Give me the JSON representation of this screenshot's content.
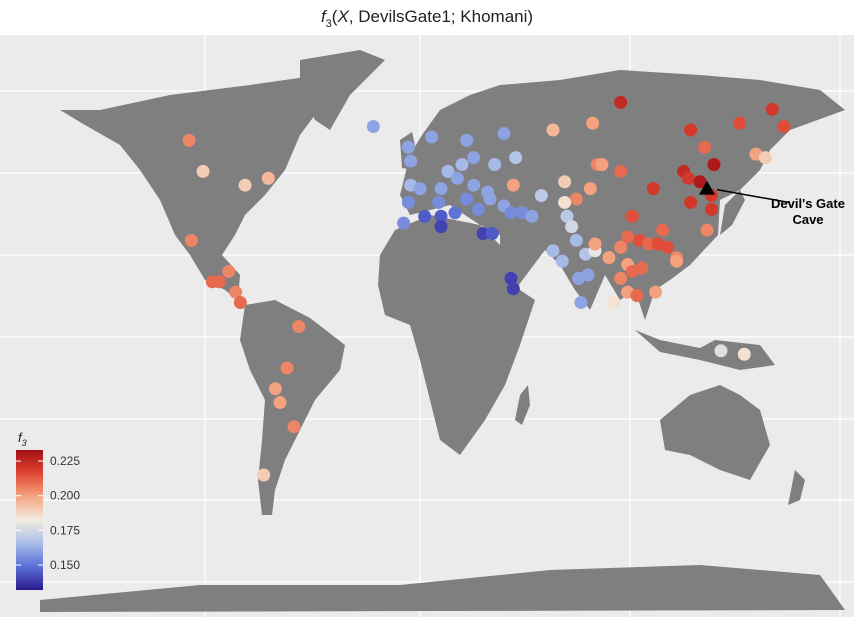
{
  "chart_data": {
    "type": "map",
    "title": [
      "f",
      "3",
      "(",
      "X",
      ", DevilsGate1; Khomani)"
    ],
    "legend_title": [
      "f",
      "3"
    ],
    "colorscale": [
      "#2a1a8c",
      "#5a6fd6",
      "#a9bde8",
      "#f3ece0",
      "#f4a582",
      "#e04632",
      "#a50f15"
    ],
    "clim": [
      0.132,
      0.233
    ],
    "legend_ticks": [
      {
        "value": 0.15,
        "label": "0.150"
      },
      0.175,
      {
        "value": 0.2,
        "label": "0.200"
      },
      0.225
    ],
    "cave": {
      "lon": 123,
      "lat": 43,
      "label": [
        "Devil's Gate",
        "Cave"
      ]
    },
    "points": [
      {
        "lon": -99,
        "lat": 57,
        "value": 0.205
      },
      {
        "lon": -93,
        "lat": 48,
        "value": 0.19
      },
      {
        "lon": -75,
        "lat": 44,
        "value": 0.19
      },
      {
        "lon": -65,
        "lat": 46,
        "value": 0.195
      },
      {
        "lon": -98,
        "lat": 28,
        "value": 0.205
      },
      {
        "lon": -89,
        "lat": 16,
        "value": 0.21
      },
      {
        "lon": -86,
        "lat": 16,
        "value": 0.21
      },
      {
        "lon": -82,
        "lat": 19,
        "value": 0.205
      },
      {
        "lon": -79,
        "lat": 13,
        "value": 0.205
      },
      {
        "lon": -77,
        "lat": 10,
        "value": 0.21
      },
      {
        "lon": -52,
        "lat": 3,
        "value": 0.205
      },
      {
        "lon": -57,
        "lat": -9,
        "value": 0.205
      },
      {
        "lon": -62,
        "lat": -15,
        "value": 0.2
      },
      {
        "lon": -60,
        "lat": -19,
        "value": 0.2
      },
      {
        "lon": -54,
        "lat": -26,
        "value": 0.205
      },
      {
        "lon": -67,
        "lat": -40,
        "value": 0.19
      },
      {
        "lon": -20,
        "lat": 61,
        "value": 0.16
      },
      {
        "lon": -5,
        "lat": 55,
        "value": 0.16
      },
      {
        "lon": -4,
        "lat": 51,
        "value": 0.16
      },
      {
        "lon": 5,
        "lat": 58,
        "value": 0.16
      },
      {
        "lon": -4,
        "lat": 44,
        "value": 0.165
      },
      {
        "lon": 0,
        "lat": 43,
        "value": 0.16
      },
      {
        "lon": 9,
        "lat": 43,
        "value": 0.16
      },
      {
        "lon": 12,
        "lat": 48,
        "value": 0.165
      },
      {
        "lon": 18,
        "lat": 50,
        "value": 0.165
      },
      {
        "lon": 20,
        "lat": 57,
        "value": 0.16
      },
      {
        "lon": 23,
        "lat": 52,
        "value": 0.16
      },
      {
        "lon": 16,
        "lat": 46,
        "value": 0.16
      },
      {
        "lon": 23,
        "lat": 44,
        "value": 0.16
      },
      {
        "lon": 29,
        "lat": 42,
        "value": 0.16
      },
      {
        "lon": 32,
        "lat": 50,
        "value": 0.165
      },
      {
        "lon": 36,
        "lat": 59,
        "value": 0.16
      },
      {
        "lon": 41,
        "lat": 52,
        "value": 0.168
      },
      {
        "lon": -5,
        "lat": 39,
        "value": 0.155
      },
      {
        "lon": -7,
        "lat": 33,
        "value": 0.155
      },
      {
        "lon": 2,
        "lat": 35,
        "value": 0.145
      },
      {
        "lon": 9,
        "lat": 35,
        "value": 0.145
      },
      {
        "lon": 9,
        "lat": 32,
        "value": 0.14
      },
      {
        "lon": 15,
        "lat": 36,
        "value": 0.15
      },
      {
        "lon": 8,
        "lat": 39,
        "value": 0.155
      },
      {
        "lon": 20,
        "lat": 40,
        "value": 0.155
      },
      {
        "lon": 25,
        "lat": 37,
        "value": 0.155
      },
      {
        "lon": 30,
        "lat": 40,
        "value": 0.16
      },
      {
        "lon": 36,
        "lat": 38,
        "value": 0.16
      },
      {
        "lon": 40,
        "lat": 44,
        "value": 0.2
      },
      {
        "lon": 27,
        "lat": 30,
        "value": 0.14
      },
      {
        "lon": 31,
        "lat": 30,
        "value": 0.145
      },
      {
        "lon": 39,
        "lat": 36,
        "value": 0.155
      },
      {
        "lon": 44,
        "lat": 36,
        "value": 0.155
      },
      {
        "lon": 39,
        "lat": 17,
        "value": 0.14
      },
      {
        "lon": 40,
        "lat": 14,
        "value": 0.14
      },
      {
        "lon": 48,
        "lat": 35,
        "value": 0.16
      },
      {
        "lon": 52,
        "lat": 41,
        "value": 0.17
      },
      {
        "lon": 57,
        "lat": 25,
        "value": 0.165
      },
      {
        "lon": 63,
        "lat": 35,
        "value": 0.17
      },
      {
        "lon": 65,
        "lat": 32,
        "value": 0.175
      },
      {
        "lon": 67,
        "lat": 28,
        "value": 0.165
      },
      {
        "lon": 61,
        "lat": 22,
        "value": 0.165
      },
      {
        "lon": 71,
        "lat": 24,
        "value": 0.168
      },
      {
        "lon": 75,
        "lat": 25,
        "value": 0.18
      },
      {
        "lon": 75,
        "lat": 27,
        "value": 0.2
      },
      {
        "lon": 68,
        "lat": 17,
        "value": 0.16
      },
      {
        "lon": 69,
        "lat": 10,
        "value": 0.16
      },
      {
        "lon": 72,
        "lat": 18,
        "value": 0.16
      },
      {
        "lon": 67,
        "lat": 40,
        "value": 0.205
      },
      {
        "lon": 73,
        "lat": 43,
        "value": 0.2
      },
      {
        "lon": 57,
        "lat": 60,
        "value": 0.195
      },
      {
        "lon": 62,
        "lat": 39,
        "value": 0.185
      },
      {
        "lon": 62,
        "lat": 45,
        "value": 0.19
      },
      {
        "lon": 76,
        "lat": 50,
        "value": 0.205
      },
      {
        "lon": 78,
        "lat": 50,
        "value": 0.2
      },
      {
        "lon": 74,
        "lat": 62,
        "value": 0.2
      },
      {
        "lon": 86,
        "lat": 68,
        "value": 0.225
      },
      {
        "lon": 86,
        "lat": 48,
        "value": 0.21
      },
      {
        "lon": 100,
        "lat": 43,
        "value": 0.22
      },
      {
        "lon": 116,
        "lat": 60,
        "value": 0.22
      },
      {
        "lon": 113,
        "lat": 48,
        "value": 0.225
      },
      {
        "lon": 115,
        "lat": 46,
        "value": 0.22
      },
      {
        "lon": 120,
        "lat": 45,
        "value": 0.23
      },
      {
        "lon": 122,
        "lat": 55,
        "value": 0.21
      },
      {
        "lon": 126,
        "lat": 50,
        "value": 0.23
      },
      {
        "lon": 137,
        "lat": 62,
        "value": 0.215
      },
      {
        "lon": 144,
        "lat": 53,
        "value": 0.2
      },
      {
        "lon": 148,
        "lat": 52,
        "value": 0.19
      },
      {
        "lon": 151,
        "lat": 66,
        "value": 0.22
      },
      {
        "lon": 156,
        "lat": 61,
        "value": 0.215
      },
      {
        "lon": 125,
        "lat": 37,
        "value": 0.22
      },
      {
        "lon": 123,
        "lat": 31,
        "value": 0.205
      },
      {
        "lon": 125,
        "lat": 41,
        "value": 0.22
      },
      {
        "lon": 116,
        "lat": 39,
        "value": 0.22
      },
      {
        "lon": 91,
        "lat": 35,
        "value": 0.215
      },
      {
        "lon": 94,
        "lat": 28,
        "value": 0.215
      },
      {
        "lon": 98,
        "lat": 27,
        "value": 0.21
      },
      {
        "lon": 102,
        "lat": 27,
        "value": 0.215
      },
      {
        "lon": 89,
        "lat": 29,
        "value": 0.21
      },
      {
        "lon": 86,
        "lat": 26,
        "value": 0.205
      },
      {
        "lon": 81,
        "lat": 23,
        "value": 0.2
      },
      {
        "lon": 89,
        "lat": 21,
        "value": 0.2
      },
      {
        "lon": 91,
        "lat": 19,
        "value": 0.21
      },
      {
        "lon": 95,
        "lat": 20,
        "value": 0.21
      },
      {
        "lon": 104,
        "lat": 31,
        "value": 0.21
      },
      {
        "lon": 110,
        "lat": 23,
        "value": 0.205
      },
      {
        "lon": 106,
        "lat": 26,
        "value": 0.215
      },
      {
        "lon": 110,
        "lat": 22,
        "value": 0.2
      },
      {
        "lon": 83,
        "lat": 10,
        "value": 0.185
      },
      {
        "lon": 89,
        "lat": 13,
        "value": 0.2
      },
      {
        "lon": 93,
        "lat": 12,
        "value": 0.21
      },
      {
        "lon": 101,
        "lat": 13,
        "value": 0.2
      },
      {
        "lon": 129,
        "lat": -4,
        "value": 0.178
      },
      {
        "lon": 139,
        "lat": -5,
        "value": 0.185
      },
      {
        "lon": 86,
        "lat": 17,
        "value": 0.205
      }
    ]
  }
}
